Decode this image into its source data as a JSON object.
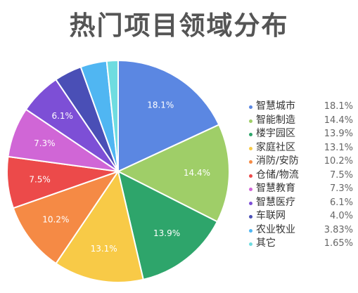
{
  "chart_data": {
    "type": "pie",
    "title": "热门项目领域分布",
    "slices": [
      {
        "label": "智慧城市",
        "value": 18.1,
        "display": "18.1%",
        "color": "#5b87e2",
        "slice_label": "18.1%"
      },
      {
        "label": "智能制造",
        "value": 14.4,
        "display": "14.4%",
        "color": "#9fce68",
        "slice_label": "14.4%"
      },
      {
        "label": "楼宇园区",
        "value": 13.9,
        "display": "13.9%",
        "color": "#2ea56b",
        "slice_label": "13.9%"
      },
      {
        "label": "家庭社区",
        "value": 13.1,
        "display": "13.1%",
        "color": "#f8ca47",
        "slice_label": "13.1%"
      },
      {
        "label": "消防/安防",
        "value": 10.2,
        "display": "10.2%",
        "color": "#f58a45",
        "slice_label": "10.2%"
      },
      {
        "label": "仓储/物流",
        "value": 7.5,
        "display": "7.5%",
        "color": "#ec4a4a",
        "slice_label": "7.5%"
      },
      {
        "label": "智慧教育",
        "value": 7.3,
        "display": "7.3%",
        "color": "#d066d6",
        "slice_label": "7.3%"
      },
      {
        "label": "智慧医疗",
        "value": 6.1,
        "display": "6.1%",
        "color": "#7d4fd6",
        "slice_label": "6.1%"
      },
      {
        "label": "车联网",
        "value": 4.0,
        "display": "4.0%",
        "color": "#4a4fb6",
        "slice_label": ""
      },
      {
        "label": "农业牧业",
        "value": 3.83,
        "display": "3.83%",
        "color": "#50b6f2",
        "slice_label": ""
      },
      {
        "label": "其它",
        "value": 1.65,
        "display": "1.65%",
        "color": "#6fdce0",
        "slice_label": ""
      }
    ],
    "legend_position": "right"
  }
}
